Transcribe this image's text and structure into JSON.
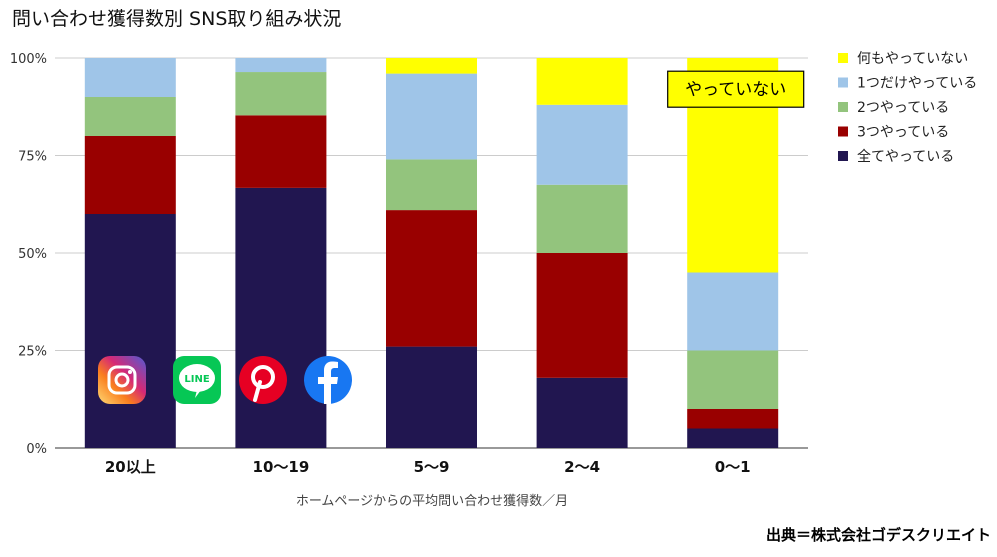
{
  "title": "問い合わせ獲得数別 SNS取り組み状況",
  "source": "出典＝株式会社ゴデスクリエイト",
  "chart_data": {
    "type": "bar",
    "stacked": true,
    "xlabel": "ホームページからの平均問い合わせ獲得数／月",
    "ylabel": "",
    "ylim": [
      0,
      100
    ],
    "yticks": [
      "0%",
      "25%",
      "50%",
      "75%",
      "100%"
    ],
    "grid": true,
    "legend_position": "right",
    "categories": [
      "20以上",
      "10〜19",
      "5〜9",
      "2〜4",
      "0〜1"
    ],
    "series": [
      {
        "name": "全てやっている",
        "color": "#211650",
        "values": [
          60,
          66.7,
          26,
          18,
          5
        ]
      },
      {
        "name": "3つやっている",
        "color": "#990000",
        "values": [
          20,
          18.6,
          35,
          32,
          5
        ]
      },
      {
        "name": "2つやっている",
        "color": "#93c47d",
        "values": [
          10,
          11.1,
          13,
          17.5,
          15
        ]
      },
      {
        "name": "1つだけやっている",
        "color": "#9fc5e8",
        "values": [
          10,
          3.6,
          22,
          20.5,
          20
        ]
      },
      {
        "name": "何もやっていない",
        "color": "#ffff00",
        "values": [
          0,
          0,
          4,
          12,
          55
        ]
      }
    ],
    "annotations": [
      {
        "text": "やっていない",
        "category": "0〜1",
        "value": 92
      }
    ]
  },
  "icons": [
    {
      "name": "instagram-icon",
      "color": "#d62976"
    },
    {
      "name": "line-icon",
      "color": "#06c755"
    },
    {
      "name": "pinterest-icon",
      "color": "#e60023"
    },
    {
      "name": "facebook-icon",
      "color": "#1877f2"
    }
  ]
}
